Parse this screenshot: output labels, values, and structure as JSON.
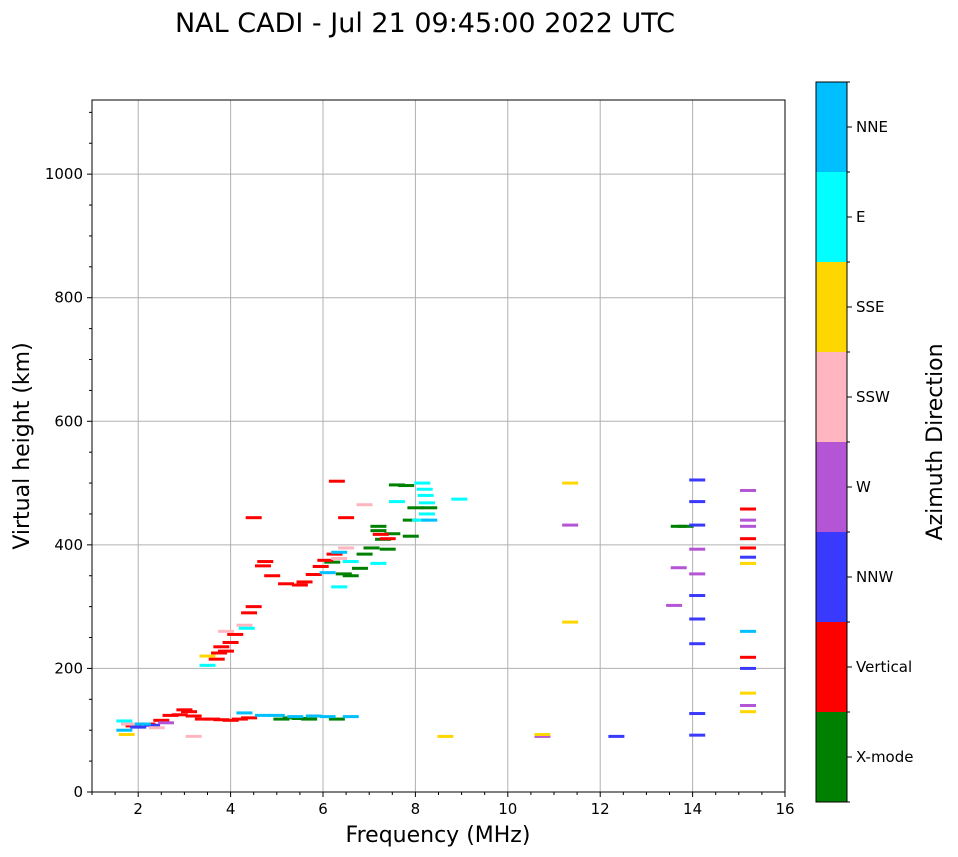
{
  "chart_data": {
    "type": "scatter",
    "title": "NAL CADI - Jul 21 09:45:00 2022 UTC",
    "xlabel": "Frequency (MHz)",
    "ylabel": "Virtual height (km)",
    "xlim": [
      1,
      16
    ],
    "ylim": [
      0,
      1120
    ],
    "xticks": [
      2,
      4,
      6,
      8,
      10,
      12,
      14,
      16
    ],
    "yticks": [
      0,
      200,
      400,
      600,
      800,
      1000
    ],
    "grid": true,
    "colorbar": {
      "label": "Azimuth Direction",
      "categories": [
        {
          "name": "X-mode",
          "color": "#008000"
        },
        {
          "name": "Vertical",
          "color": "#ff0000"
        },
        {
          "name": "NNW",
          "color": "#3a3aff"
        },
        {
          "name": "W",
          "color": "#b455d6"
        },
        {
          "name": "SSW",
          "color": "#ffb6c1"
        },
        {
          "name": "SSE",
          "color": "#ffd700"
        },
        {
          "name": "E",
          "color": "#00ffff"
        },
        {
          "name": "NNE",
          "color": "#00bfff"
        }
      ]
    },
    "series": [
      {
        "name": "X-mode",
        "points": [
          [
            5.1,
            118
          ],
          [
            5.3,
            120
          ],
          [
            5.5,
            119
          ],
          [
            5.7,
            118
          ],
          [
            6.3,
            118
          ],
          [
            6.2,
            372
          ],
          [
            6.45,
            353
          ],
          [
            6.6,
            350
          ],
          [
            6.8,
            362
          ],
          [
            6.9,
            385
          ],
          [
            7.05,
            395
          ],
          [
            7.2,
            423
          ],
          [
            7.2,
            430
          ],
          [
            7.3,
            409
          ],
          [
            7.4,
            393
          ],
          [
            7.5,
            418
          ],
          [
            7.6,
            497
          ],
          [
            7.8,
            496
          ],
          [
            7.9,
            414
          ],
          [
            7.9,
            440
          ],
          [
            8.0,
            460
          ],
          [
            8.3,
            460
          ],
          [
            13.7,
            430
          ],
          [
            13.85,
            430
          ]
        ]
      },
      {
        "name": "Vertical",
        "points": [
          [
            1.9,
            107
          ],
          [
            2.2,
            110
          ],
          [
            2.5,
            116
          ],
          [
            2.7,
            124
          ],
          [
            2.9,
            125
          ],
          [
            3.0,
            133
          ],
          [
            3.1,
            130
          ],
          [
            3.2,
            123
          ],
          [
            3.4,
            118
          ],
          [
            3.6,
            118
          ],
          [
            3.8,
            117
          ],
          [
            4.0,
            116
          ],
          [
            4.2,
            118
          ],
          [
            4.4,
            120
          ],
          [
            3.7,
            215
          ],
          [
            3.75,
            225
          ],
          [
            3.8,
            235
          ],
          [
            3.9,
            228
          ],
          [
            4.0,
            242
          ],
          [
            4.1,
            255
          ],
          [
            4.4,
            290
          ],
          [
            4.5,
            300
          ],
          [
            4.5,
            444
          ],
          [
            4.7,
            366
          ],
          [
            4.75,
            373
          ],
          [
            4.9,
            350
          ],
          [
            5.2,
            337
          ],
          [
            5.5,
            335
          ],
          [
            5.6,
            340
          ],
          [
            5.8,
            352
          ],
          [
            5.95,
            365
          ],
          [
            6.05,
            375
          ],
          [
            6.25,
            385
          ],
          [
            6.3,
            503
          ],
          [
            6.5,
            444
          ],
          [
            7.25,
            417
          ],
          [
            7.4,
            410
          ],
          [
            15.2,
            458
          ],
          [
            15.2,
            410
          ],
          [
            15.2,
            395
          ],
          [
            15.2,
            218
          ]
        ]
      },
      {
        "name": "NNW",
        "points": [
          [
            2.0,
            105
          ],
          [
            2.3,
            108
          ],
          [
            14.1,
            505
          ],
          [
            14.1,
            470
          ],
          [
            14.1,
            432
          ],
          [
            14.1,
            318
          ],
          [
            14.1,
            280
          ],
          [
            14.1,
            240
          ],
          [
            14.1,
            127
          ],
          [
            14.1,
            92
          ],
          [
            12.35,
            90
          ],
          [
            15.2,
            380
          ],
          [
            15.2,
            200
          ]
        ]
      },
      {
        "name": "W",
        "points": [
          [
            2.6,
            112
          ],
          [
            10.75,
            90
          ],
          [
            11.35,
            432
          ],
          [
            13.6,
            302
          ],
          [
            13.7,
            363
          ],
          [
            14.1,
            393
          ],
          [
            14.1,
            353
          ],
          [
            15.2,
            488
          ],
          [
            15.2,
            440
          ],
          [
            15.2,
            430
          ],
          [
            15.2,
            140
          ]
        ]
      },
      {
        "name": "SSW",
        "points": [
          [
            1.8,
            110
          ],
          [
            2.4,
            104
          ],
          [
            3.2,
            90
          ],
          [
            3.9,
            260
          ],
          [
            4.3,
            270
          ],
          [
            6.35,
            378
          ],
          [
            6.5,
            395
          ],
          [
            6.9,
            465
          ]
        ]
      },
      {
        "name": "SSE",
        "points": [
          [
            1.75,
            93
          ],
          [
            3.5,
            220
          ],
          [
            8.65,
            90
          ],
          [
            10.75,
            93
          ],
          [
            11.35,
            500
          ],
          [
            11.35,
            275
          ],
          [
            15.2,
            370
          ],
          [
            15.2,
            160
          ],
          [
            15.2,
            130
          ]
        ]
      },
      {
        "name": "E",
        "points": [
          [
            1.7,
            115
          ],
          [
            3.5,
            205
          ],
          [
            4.35,
            265
          ],
          [
            6.35,
            332
          ],
          [
            6.6,
            373
          ],
          [
            7.2,
            370
          ],
          [
            7.6,
            470
          ],
          [
            8.15,
            500
          ],
          [
            8.2,
            490
          ],
          [
            8.22,
            480
          ],
          [
            8.25,
            468
          ],
          [
            8.25,
            450
          ],
          [
            8.1,
            440
          ],
          [
            8.95,
            474
          ]
        ]
      },
      {
        "name": "NNE",
        "points": [
          [
            1.7,
            100
          ],
          [
            2.1,
            110
          ],
          [
            4.3,
            128
          ],
          [
            4.7,
            124
          ],
          [
            5.0,
            124
          ],
          [
            5.4,
            122
          ],
          [
            5.8,
            123
          ],
          [
            6.1,
            122
          ],
          [
            6.6,
            122
          ],
          [
            6.1,
            355
          ],
          [
            6.35,
            388
          ],
          [
            8.3,
            440
          ],
          [
            15.2,
            260
          ]
        ]
      }
    ]
  }
}
